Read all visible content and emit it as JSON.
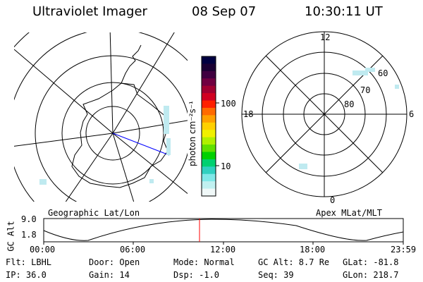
{
  "header": {
    "title": "Ultraviolet Imager",
    "date": "08 Sep 07",
    "time": "10:30:11 UT"
  },
  "colorbar": {
    "label": "photon cm⁻²s⁻¹",
    "tick_labels": [
      "100",
      "10"
    ],
    "colors": [
      "#000040",
      "#1a0033",
      "#400040",
      "#700040",
      "#a00030",
      "#d00020",
      "#ff2000",
      "#ff6a00",
      "#ffa000",
      "#ffd000",
      "#f0f000",
      "#b0f000",
      "#60e000",
      "#00d000",
      "#00d070",
      "#30d0c0",
      "#80e8e8",
      "#c0f0f0",
      "#f0f8f8"
    ]
  },
  "left_map": {
    "caption": "Geographic Lat/Lon"
  },
  "right_map": {
    "caption": "Apex MLat/MLT",
    "mlt_labels": [
      "12",
      "18",
      "6",
      "0"
    ],
    "lat_labels": [
      "60",
      "70",
      "80"
    ]
  },
  "timeline": {
    "ylabel": "GC Alt",
    "y_ticks": [
      "9.0",
      "1.8"
    ],
    "x_ticks": [
      "00:00",
      "06:00",
      "12:00",
      "18:00",
      "23:59"
    ],
    "marker_color": "#ff0000"
  },
  "info": {
    "row1": {
      "filter": "Flt: LBHL",
      "door": "Door: Open",
      "mode": "Mode: Normal",
      "gc_alt": "GC Alt: 8.7 Re",
      "glat": "GLat: -81.8"
    },
    "row2": {
      "ip": "IP: 36.0",
      "gain": "Gain: 14",
      "dsp": "Dsp:   -1.0",
      "seq": "Seq: 39",
      "glon": "GLon: 218.7"
    }
  }
}
